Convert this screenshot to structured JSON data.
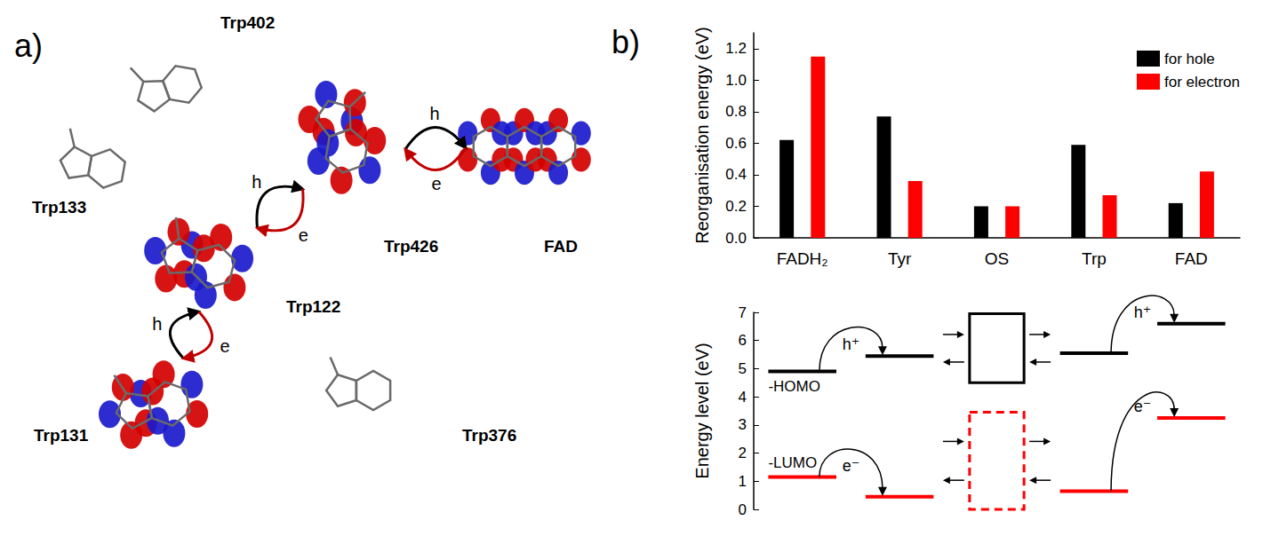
{
  "panel_labels": [
    "a)",
    "b)"
  ],
  "diagram": {
    "nodes": [
      {
        "label": "Trp402",
        "orbital": false
      },
      {
        "label": "Trp133",
        "orbital": false
      },
      {
        "label": "Trp426",
        "orbital": true
      },
      {
        "label": "FAD",
        "orbital": true
      },
      {
        "label": "Trp122",
        "orbital": true
      },
      {
        "label": "Trp131",
        "orbital": true
      },
      {
        "label": "Trp376",
        "orbital": false
      }
    ],
    "transfers": [
      {
        "text": "h",
        "from": "Trp426",
        "to": "FAD",
        "color": "#000000"
      },
      {
        "text": "e",
        "from": "FAD",
        "to": "Trp426",
        "color": "#c00000"
      },
      {
        "text": "h",
        "from": "Trp122",
        "to": "Trp426",
        "color": "#000000"
      },
      {
        "text": "e",
        "from": "Trp426",
        "to": "Trp122",
        "color": "#c00000"
      },
      {
        "text": "h",
        "from": "Trp131",
        "to": "Trp122",
        "color": "#000000"
      },
      {
        "text": "e",
        "from": "Trp122",
        "to": "Trp131",
        "color": "#c00000"
      }
    ]
  },
  "chart_data": [
    {
      "type": "bar",
      "ylabel": "Reorganisation energy (eV)",
      "categories": [
        "FADH₂",
        "Tyr",
        "OS",
        "Trp",
        "FAD"
      ],
      "series": [
        {
          "name": "for hole",
          "color": "#000000",
          "values": [
            0.62,
            0.77,
            0.2,
            0.59,
            0.22
          ]
        },
        {
          "name": "for electron",
          "color": "#ff0000",
          "values": [
            1.15,
            0.36,
            0.2,
            0.27,
            0.42
          ]
        }
      ],
      "ylim": [
        0,
        1.3
      ],
      "yticks": [
        {
          "value": 0,
          "label": "0.0"
        },
        0.2,
        0.4,
        0.6,
        0.8,
        {
          "value": 1,
          "label": "1.0"
        },
        1.2
      ],
      "legend": "top-right",
      "grid": false
    },
    {
      "type": "energy_levels",
      "ylabel": "Energy level (eV)",
      "categories": [
        "FADH₂",
        "Tyr",
        "OS",
        "Trp",
        "FAD"
      ],
      "tick_labels": "y",
      "series": [
        {
          "name": "-HOMO",
          "color": "#000000",
          "values": [
            4.9,
            5.45,
            null,
            5.55,
            6.6
          ],
          "box": [
            4.5,
            6.95
          ]
        },
        {
          "name": "-LUMO",
          "color": "#ff0000",
          "values": [
            1.15,
            0.45,
            null,
            0.65,
            3.25
          ],
          "box": [
            0,
            3.45
          ]
        }
      ],
      "annotations": [
        {
          "text": "h⁺",
          "series": "-HOMO",
          "from": "FADH₂",
          "to": "Tyr"
        },
        {
          "text": "h⁺",
          "series": "-HOMO",
          "from": "Trp",
          "to": "FAD"
        },
        {
          "text": "e⁻",
          "series": "-LUMO",
          "from": "FADH₂",
          "to": "Tyr"
        },
        {
          "text": "e⁻",
          "series": "-LUMO",
          "from": "Trp",
          "to": "FAD"
        }
      ],
      "ylim": [
        0,
        7
      ],
      "yticks": [
        0,
        1,
        2,
        3,
        4,
        5,
        6,
        7
      ],
      "grid": false
    }
  ]
}
